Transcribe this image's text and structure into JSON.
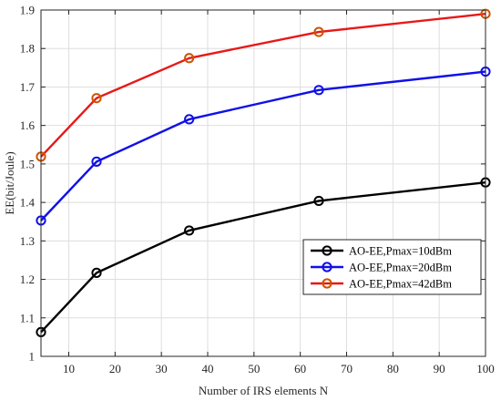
{
  "chart_data": {
    "type": "line",
    "title": "",
    "xlabel": "Number of IRS elements N",
    "ylabel": "EE(bit/Joule)",
    "xlim": [
      4,
      100
    ],
    "ylim": [
      1,
      1.9
    ],
    "xticks": [
      10,
      20,
      30,
      40,
      50,
      60,
      70,
      80,
      90,
      100
    ],
    "yticks": [
      1,
      1.1,
      1.2,
      1.3,
      1.4,
      1.5,
      1.6,
      1.7,
      1.8,
      1.9
    ],
    "grid": true,
    "legend_position": "lower-right",
    "marker": "circle-open",
    "series": [
      {
        "name": "AO-EE,Pmax=10dBm",
        "color": "#000000",
        "x": [
          4,
          16,
          36,
          64,
          100
        ],
        "y": [
          1.063,
          1.217,
          1.327,
          1.404,
          1.452
        ]
      },
      {
        "name": "AO-EE,Pmax=20dBm",
        "color": "#1010e8",
        "x": [
          4,
          16,
          36,
          64,
          100
        ],
        "y": [
          1.353,
          1.506,
          1.616,
          1.692,
          1.74
        ]
      },
      {
        "name": "AO-EE,Pmax=42dBm",
        "color": "#e81818",
        "marker_color": "#cc5500",
        "x": [
          4,
          16,
          36,
          64,
          100
        ],
        "y": [
          1.519,
          1.671,
          1.775,
          1.843,
          1.89
        ]
      }
    ]
  }
}
